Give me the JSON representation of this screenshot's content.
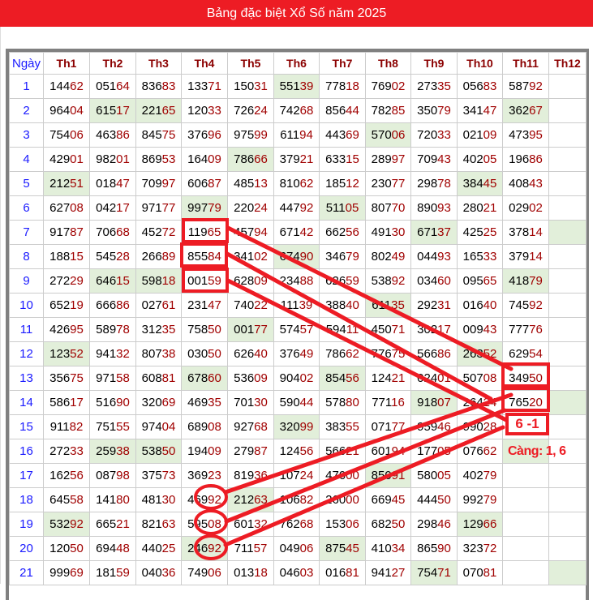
{
  "title": "Bảng đặc biệt Xổ Số năm 2025",
  "table": {
    "day_header": "Ngày",
    "months": [
      "Th1",
      "Th2",
      "Th3",
      "Th4",
      "Th5",
      "Th6",
      "Th7",
      "Th8",
      "Th9",
      "Th10",
      "Th11",
      "Th12"
    ],
    "rows": [
      {
        "day": "1",
        "values": [
          "14462",
          "05164",
          "83683",
          "13371",
          "15031",
          "55139",
          "77818",
          "76902",
          "27335",
          "05683",
          "58792",
          ""
        ],
        "highlight": [
          5
        ]
      },
      {
        "day": "2",
        "values": [
          "96404",
          "61517",
          "22165",
          "12033",
          "72624",
          "74268",
          "85644",
          "78285",
          "35079",
          "34147",
          "36267",
          ""
        ],
        "highlight": [
          1,
          2,
          10
        ]
      },
      {
        "day": "3",
        "values": [
          "75406",
          "46386",
          "84575",
          "37696",
          "97599",
          "61194",
          "44369",
          "57006",
          "72033",
          "02109",
          "47395",
          ""
        ],
        "highlight": [
          7
        ]
      },
      {
        "day": "4",
        "values": [
          "42901",
          "98201",
          "86953",
          "16409",
          "78666",
          "37921",
          "63315",
          "28997",
          "70943",
          "40205",
          "19686",
          ""
        ],
        "highlight": [
          4
        ]
      },
      {
        "day": "5",
        "values": [
          "21251",
          "01847",
          "70997",
          "60687",
          "48513",
          "81062",
          "18512",
          "23077",
          "29878",
          "38445",
          "40843",
          ""
        ],
        "highlight": [
          0,
          9
        ]
      },
      {
        "day": "6",
        "values": [
          "62708",
          "04217",
          "97177",
          "99779",
          "22024",
          "44792",
          "51105",
          "80770",
          "89093",
          "28021",
          "02902",
          ""
        ],
        "highlight": [
          3,
          6
        ]
      },
      {
        "day": "7",
        "values": [
          "91787",
          "70668",
          "45272",
          "11965",
          "45794",
          "67142",
          "66256",
          "49130",
          "67137",
          "42525",
          "37814",
          ""
        ],
        "highlight": [
          8,
          11
        ]
      },
      {
        "day": "8",
        "values": [
          "18815",
          "54528",
          "26689",
          "85584",
          "34102",
          "67490",
          "34679",
          "80249",
          "04493",
          "16533",
          "37914",
          ""
        ],
        "highlight": [
          5
        ]
      },
      {
        "day": "9",
        "values": [
          "27229",
          "64615",
          "59818",
          "00159",
          "62809",
          "23488",
          "62659",
          "53892",
          "03460",
          "09565",
          "41879",
          ""
        ],
        "highlight": [
          1,
          2,
          10
        ]
      },
      {
        "day": "10",
        "values": [
          "65219",
          "66686",
          "02761",
          "23147",
          "74022",
          "11139",
          "38840",
          "61135",
          "29231",
          "01640",
          "74592",
          ""
        ],
        "highlight": [
          7
        ]
      },
      {
        "day": "11",
        "values": [
          "42695",
          "58978",
          "31235",
          "75850",
          "00177",
          "57457",
          "59411",
          "45071",
          "30217",
          "00943",
          "77776",
          ""
        ],
        "highlight": [
          4
        ]
      },
      {
        "day": "12",
        "values": [
          "12352",
          "94132",
          "80738",
          "03050",
          "62640",
          "37649",
          "78662",
          "77675",
          "56686",
          "26352",
          "62954",
          ""
        ],
        "highlight": [
          0,
          9
        ]
      },
      {
        "day": "13",
        "values": [
          "35675",
          "97158",
          "60881",
          "67860",
          "53609",
          "90402",
          "85456",
          "12421",
          "02401",
          "50708",
          "34950",
          ""
        ],
        "highlight": [
          3,
          6
        ]
      },
      {
        "day": "14",
        "values": [
          "58617",
          "51690",
          "32069",
          "46935",
          "70130",
          "59044",
          "57880",
          "77116",
          "91807",
          "26424",
          "76520",
          ""
        ],
        "highlight": [
          8,
          11
        ]
      },
      {
        "day": "15",
        "values": [
          "91182",
          "75155",
          "97404",
          "68908",
          "92768",
          "32099",
          "38355",
          "07177",
          "95946",
          "99028",
          "",
          ""
        ],
        "highlight": [
          5
        ]
      },
      {
        "day": "16",
        "values": [
          "27233",
          "25938",
          "53850",
          "19409",
          "27987",
          "12456",
          "56621",
          "60194",
          "17705",
          "07662",
          "",
          ""
        ],
        "highlight": [
          1,
          2,
          10
        ]
      },
      {
        "day": "17",
        "values": [
          "16256",
          "08798",
          "37573",
          "36923",
          "81936",
          "10724",
          "47000",
          "85091",
          "58005",
          "40279",
          "",
          ""
        ],
        "highlight": [
          7
        ]
      },
      {
        "day": "18",
        "values": [
          "64558",
          "14180",
          "48130",
          "46992",
          "21263",
          "10682",
          "26000",
          "66945",
          "44450",
          "99279",
          "",
          ""
        ],
        "highlight": [
          4
        ]
      },
      {
        "day": "19",
        "values": [
          "53292",
          "66521",
          "82163",
          "59508",
          "60132",
          "76268",
          "15306",
          "68250",
          "29846",
          "12966",
          "",
          ""
        ],
        "highlight": [
          0,
          9
        ]
      },
      {
        "day": "20",
        "values": [
          "12050",
          "69448",
          "44025",
          "24692",
          "71157",
          "04906",
          "87545",
          "41034",
          "86590",
          "32372",
          "",
          ""
        ],
        "highlight": [
          3,
          6
        ]
      },
      {
        "day": "21",
        "values": [
          "99969",
          "18159",
          "04036",
          "74906",
          "01318",
          "04603",
          "01681",
          "94127",
          "75471",
          "07081",
          "",
          ""
        ],
        "highlight": [
          8,
          11
        ]
      }
    ]
  },
  "annotations": {
    "result_box": "6 -1",
    "cang": "Càng: 1, 6"
  },
  "colors": {
    "title_bar": "#ed1c24",
    "highlight": "#e2efda",
    "tail_digits": "#a00000",
    "month_header": "#8b0000",
    "day": "#1a1aff",
    "annotation": "#ed1c24"
  }
}
